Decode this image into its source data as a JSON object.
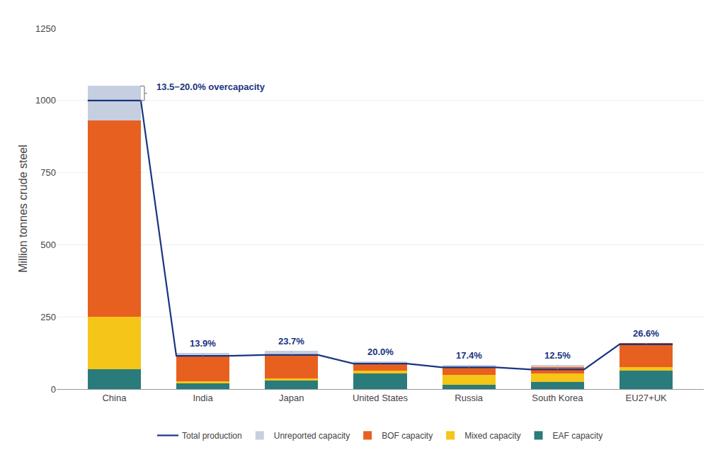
{
  "chart_data": {
    "type": "bar",
    "stacked": true,
    "categories": [
      "China",
      "India",
      "Japan",
      "United States",
      "Russia",
      "South Korea",
      "EU27+UK"
    ],
    "ylabel": "Million tonnes crude steel",
    "ylim": [
      0,
      1250
    ],
    "yticks": [
      0,
      250,
      500,
      750,
      1000,
      1250
    ],
    "grid": true,
    "legend": "bottom",
    "series": [
      {
        "name": "EAF capacity",
        "color": "#2a7b7b",
        "values": [
          70,
          20,
          30,
          55,
          15,
          25,
          65
        ]
      },
      {
        "name": "Mixed capacity",
        "color": "#f5c518",
        "values": [
          180,
          8,
          8,
          8,
          35,
          30,
          10
        ]
      },
      {
        "name": "BOF capacity",
        "color": "#e86020",
        "values": [
          680,
          85,
          80,
          25,
          25,
          20,
          85
        ]
      },
      {
        "name": "Unreported capacity",
        "color": "#c5cfe0",
        "values": [
          120,
          12,
          15,
          8,
          8,
          8,
          0
        ]
      },
      {
        "name": "Total production",
        "type": "line",
        "color": "#1a3580",
        "values": [
          1000,
          115,
          118,
          88,
          75,
          68,
          155
        ]
      }
    ],
    "annotations": [
      {
        "category": "China",
        "text": "13.5−20.0% overcapacity",
        "color": "#1a3580"
      },
      {
        "category": "India",
        "text": "13.9%",
        "color": "#1a3580"
      },
      {
        "category": "Japan",
        "text": "23.7%",
        "color": "#1a3580"
      },
      {
        "category": "United States",
        "text": "20.0%",
        "color": "#1a3580"
      },
      {
        "category": "Russia",
        "text": "17.4%",
        "color": "#1a3580"
      },
      {
        "category": "South Korea",
        "text": "12.5%",
        "color": "#1a3580"
      },
      {
        "category": "EU27+UK",
        "text": "26.6%",
        "color": "#1a3580"
      }
    ]
  }
}
